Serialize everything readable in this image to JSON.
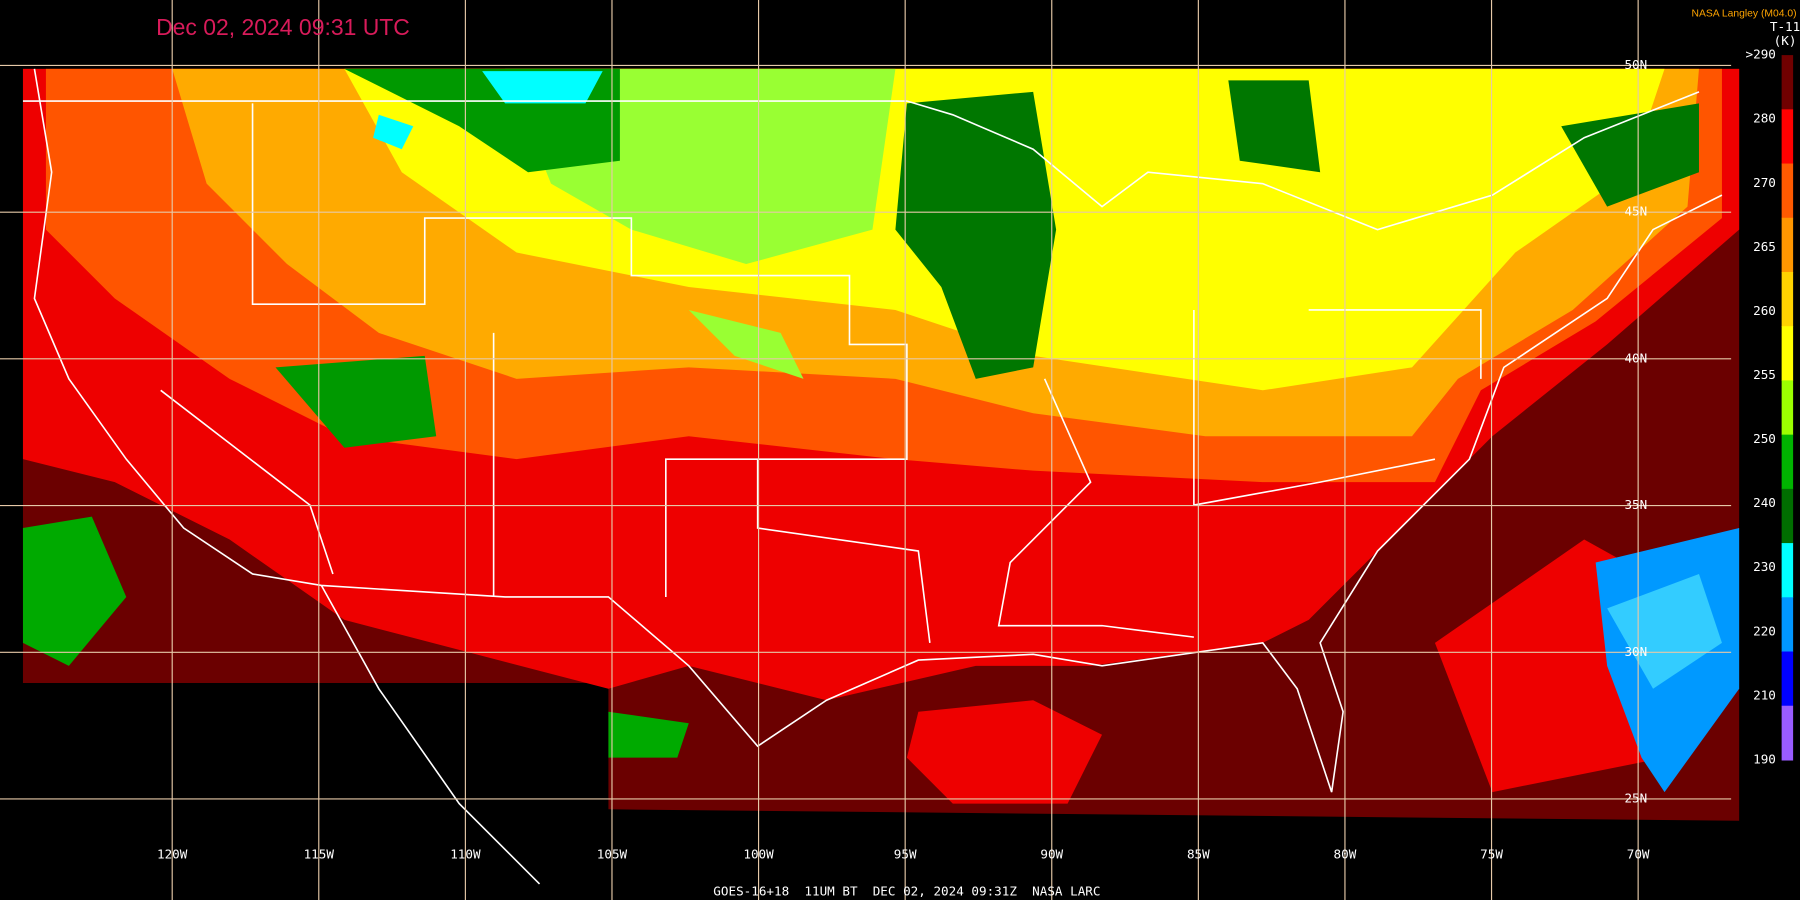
{
  "header": {
    "timestamp": "Dec 02, 2024 09:31 UTC",
    "credit": "NASA Langley (M04.0)"
  },
  "colorbar": {
    "title": "T-11",
    "unit": "(K)",
    "labels": [
      ">290",
      "280",
      "270",
      "265",
      "260",
      "255",
      "250",
      "240",
      "230",
      "220",
      "210",
      "190"
    ],
    "colors": [
      "#700000",
      "#ff0000",
      "#ff5a00",
      "#ff9600",
      "#ffd200",
      "#ffff00",
      "#9cff00",
      "#00b400",
      "#006e00",
      "#00ffff",
      "#0096ff",
      "#0000ff",
      "#9a5cff"
    ]
  },
  "map": {
    "longitude_labels": [
      "120W",
      "115W",
      "110W",
      "105W",
      "100W",
      "95W",
      "90W",
      "85W",
      "80W",
      "75W",
      "70W"
    ],
    "latitude_labels": [
      "50N",
      "45N",
      "40N",
      "35N",
      "30N",
      "25N"
    ]
  },
  "footer": "GOES-16+18  11UM BT  DEC 02, 2024 09:31Z  NASA LARC"
}
